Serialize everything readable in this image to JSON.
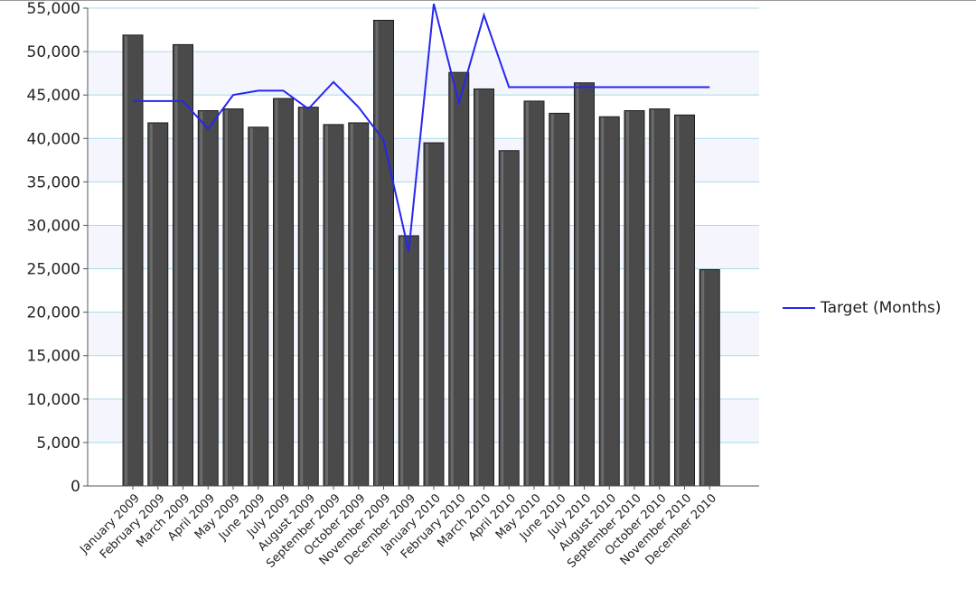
{
  "chart_data": {
    "type": "bar",
    "title": "",
    "xlabel": "",
    "ylabel": "",
    "ylim": [
      0,
      55000
    ],
    "yticks": [
      0,
      5000,
      10000,
      15000,
      20000,
      25000,
      30000,
      35000,
      40000,
      45000,
      50000,
      55000
    ],
    "ytick_labels": [
      "0",
      "5,000",
      "10,000",
      "15,000",
      "20,000",
      "25,000",
      "30,000",
      "35,000",
      "40,000",
      "45,000",
      "50,000",
      "55,000"
    ],
    "grid": true,
    "categories": [
      "January 2009",
      "February 2009",
      "March 2009",
      "April 2009",
      "May 2009",
      "June 2009",
      "July 2009",
      "August 2009",
      "September 2009",
      "October 2009",
      "November 2009",
      "December 2009",
      "January 2010",
      "February 2010",
      "March 2010",
      "April 2010",
      "May 2010",
      "June 2010",
      "July 2010",
      "August 2010",
      "September 2010",
      "October 2010",
      "November 2010",
      "December 2010"
    ],
    "series": [
      {
        "kind": "bar",
        "color": "#4a4a4a",
        "values": [
          51900,
          41800,
          50800,
          43200,
          43400,
          41300,
          44600,
          43600,
          41600,
          41800,
          53600,
          28800,
          39500,
          47600,
          45700,
          38600,
          44300,
          42900,
          46400,
          42500,
          43200,
          43400,
          42700,
          24900
        ]
      },
      {
        "name": "Target (Months)",
        "kind": "line",
        "color": "#2626ee",
        "values": [
          44300,
          44300,
          44300,
          41100,
          45000,
          45500,
          45500,
          43400,
          46500,
          43600,
          39800,
          27000,
          55500,
          44100,
          54200,
          45900,
          45900,
          45900,
          45900,
          45900,
          45900,
          45900,
          45900,
          45900
        ]
      }
    ],
    "legend": {
      "position": "right",
      "entries": [
        "Target (Months)"
      ]
    }
  }
}
